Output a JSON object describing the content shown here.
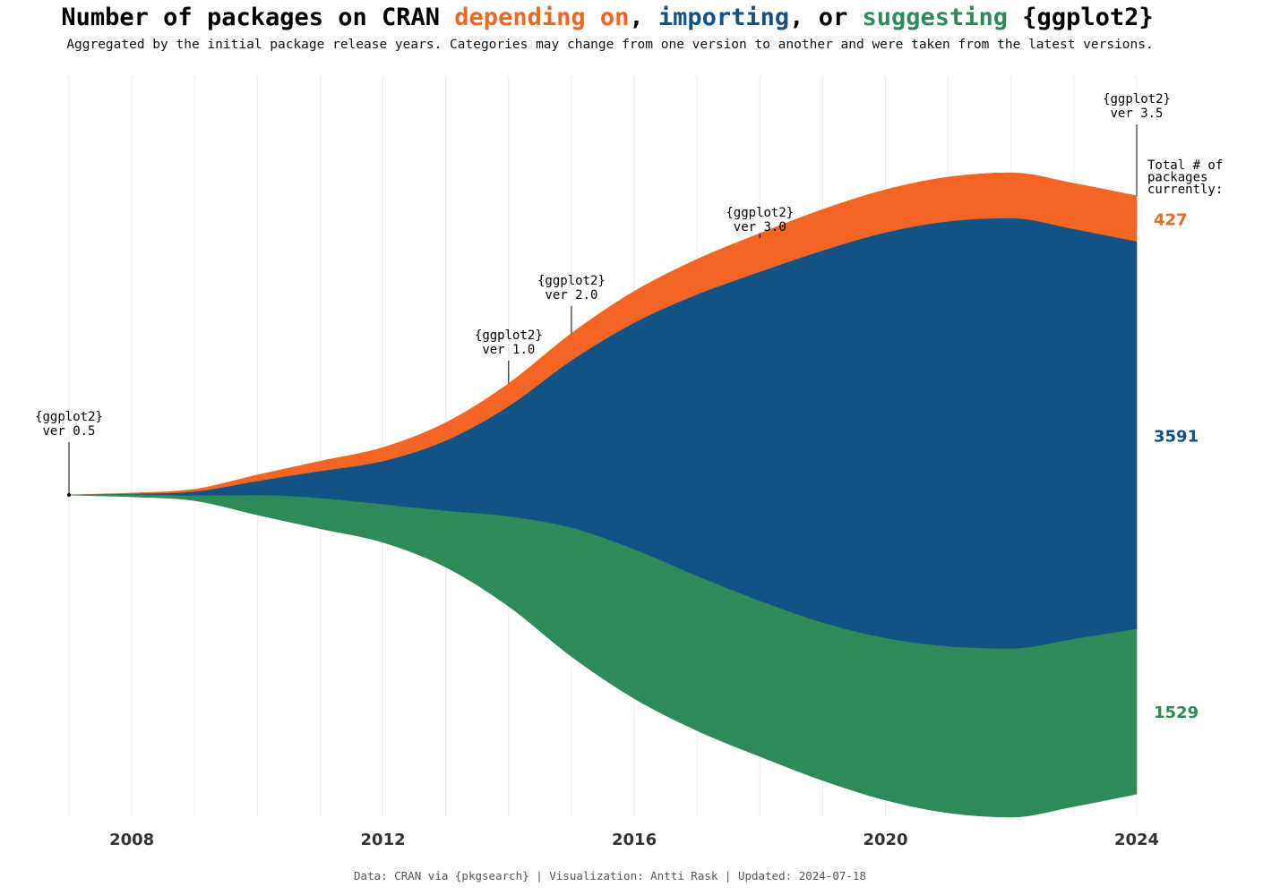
{
  "title": {
    "prefix": "Number of packages on CRAN ",
    "depends": "depending on",
    "sep1": ", ",
    "imports": "importing",
    "sep2": ", or ",
    "suggests": "suggesting",
    "suffix": " {ggplot2}"
  },
  "subtitle": "Aggregated by the initial package release years. Categories may change from one version to another and were taken from the latest versions.",
  "caption": "Data: CRAN via {pkgsearch} | Visualization: Antti Rask | Updated: 2024-07-18",
  "colors": {
    "depends": "#F26522",
    "imports": "#125285",
    "suggests": "#2E8B57",
    "grid": "#EBEBEB",
    "text": "#000000"
  },
  "total_label": [
    "Total # of",
    "packages",
    "currently:"
  ],
  "chart_data": {
    "type": "area",
    "subtype": "streamgraph",
    "x": [
      2007,
      2008,
      2009,
      2010,
      2011,
      2012,
      2013,
      2014,
      2015,
      2016,
      2017,
      2018,
      2019,
      2020,
      2021,
      2022,
      2023,
      2024
    ],
    "xlim": [
      2007,
      2024
    ],
    "x_ticks": [
      "2008",
      "2012",
      "2016",
      "2020",
      "2024"
    ],
    "grid": true,
    "series": [
      {
        "name": "depending on",
        "color_key": "depends",
        "values": [
          1,
          10,
          25,
          60,
          95,
          130,
          170,
          215,
          255,
          295,
          330,
          360,
          385,
          400,
          415,
          425,
          427,
          427
        ]
      },
      {
        "name": "importing",
        "color_key": "imports",
        "values": [
          0,
          5,
          35,
          130,
          250,
          400,
          650,
          1020,
          1550,
          2100,
          2610,
          3050,
          3450,
          3760,
          3940,
          3990,
          3800,
          3591
        ]
      },
      {
        "name": "suggesting",
        "color_key": "suggests",
        "values": [
          0,
          20,
          45,
          180,
          280,
          350,
          520,
          830,
          1190,
          1380,
          1430,
          1440,
          1460,
          1500,
          1540,
          1560,
          1550,
          1529
        ]
      }
    ],
    "end_labels": [
      {
        "text": "427",
        "color_key": "depends"
      },
      {
        "text": "3591",
        "color_key": "imports"
      },
      {
        "text": "1529",
        "color_key": "suggests"
      }
    ],
    "annotations": [
      {
        "x": 2007,
        "lines": [
          "{ggplot2}",
          "ver 0.5"
        ],
        "label_top": 470
      },
      {
        "x": 2014,
        "lines": [
          "{ggplot2}",
          "ver 1.0"
        ],
        "label_top": 379
      },
      {
        "x": 2015,
        "lines": [
          "{ggplot2}",
          "ver 2.0"
        ],
        "label_top": 318
      },
      {
        "x": 2018,
        "lines": [
          "{ggplot2}",
          "ver 3.0"
        ],
        "label_top": 242
      },
      {
        "x": 2024,
        "lines": [
          "{ggplot2}",
          "ver 3.5"
        ],
        "label_top": 115
      }
    ]
  }
}
